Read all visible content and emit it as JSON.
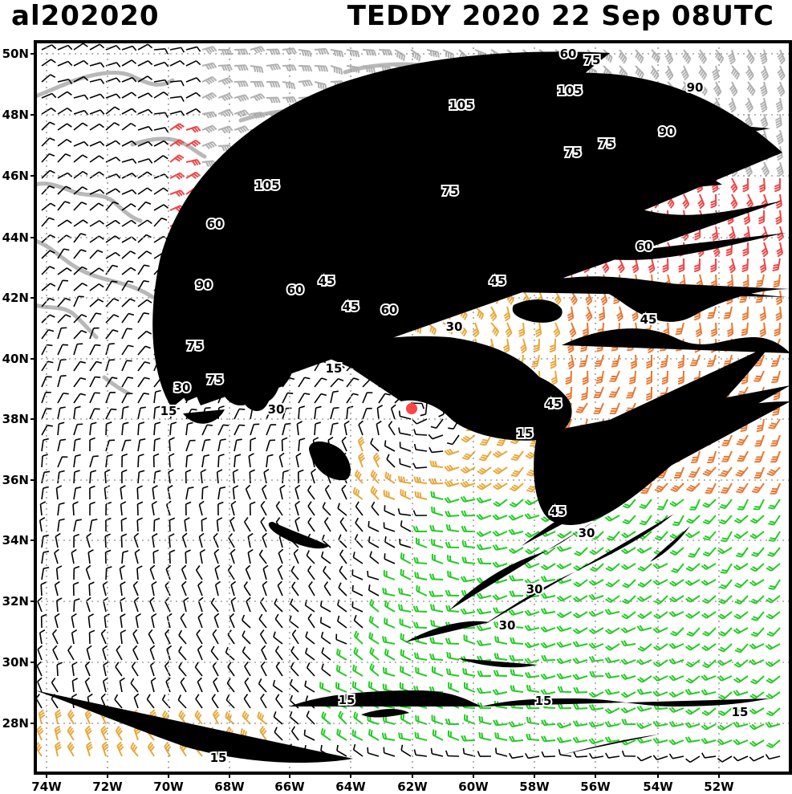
{
  "header": {
    "storm_id": "al202020",
    "storm_info": "TEDDY 2020 22 Sep 08UTC"
  },
  "axes": {
    "lat_labels": [
      "50N",
      "48N",
      "46N",
      "44N",
      "42N",
      "40N",
      "38N",
      "36N",
      "34N",
      "32N",
      "30N",
      "28N"
    ],
    "lon_labels": [
      "74W",
      "72W",
      "70W",
      "68W",
      "66W",
      "64W",
      "62W",
      "60W",
      "58W",
      "56W",
      "54W",
      "52W"
    ]
  },
  "contour_labels": [
    "60",
    "75",
    "105",
    "90",
    "105",
    "90",
    "75",
    "75",
    "105",
    "75",
    "60",
    "60",
    "45",
    "60",
    "45",
    "60",
    "45",
    "90",
    "75",
    "45",
    "75",
    "30",
    "15",
    "30",
    "15",
    "30",
    "45",
    "15",
    "45",
    "30",
    "30",
    "30",
    "15",
    "15",
    "15",
    "15"
  ],
  "colors": {
    "contour": "#000000",
    "barb_calm": "#000000",
    "barb_ts": "#22cc22",
    "barb_strong": "#e8a838",
    "barb_gale": "#e87830",
    "barb_storm": "#ee4444",
    "barb_extreme": "#b0b0b0",
    "grid": "#a0a0a0",
    "coast": "#b8b8b8",
    "center": "#ff4444"
  },
  "legend_note": ""
}
